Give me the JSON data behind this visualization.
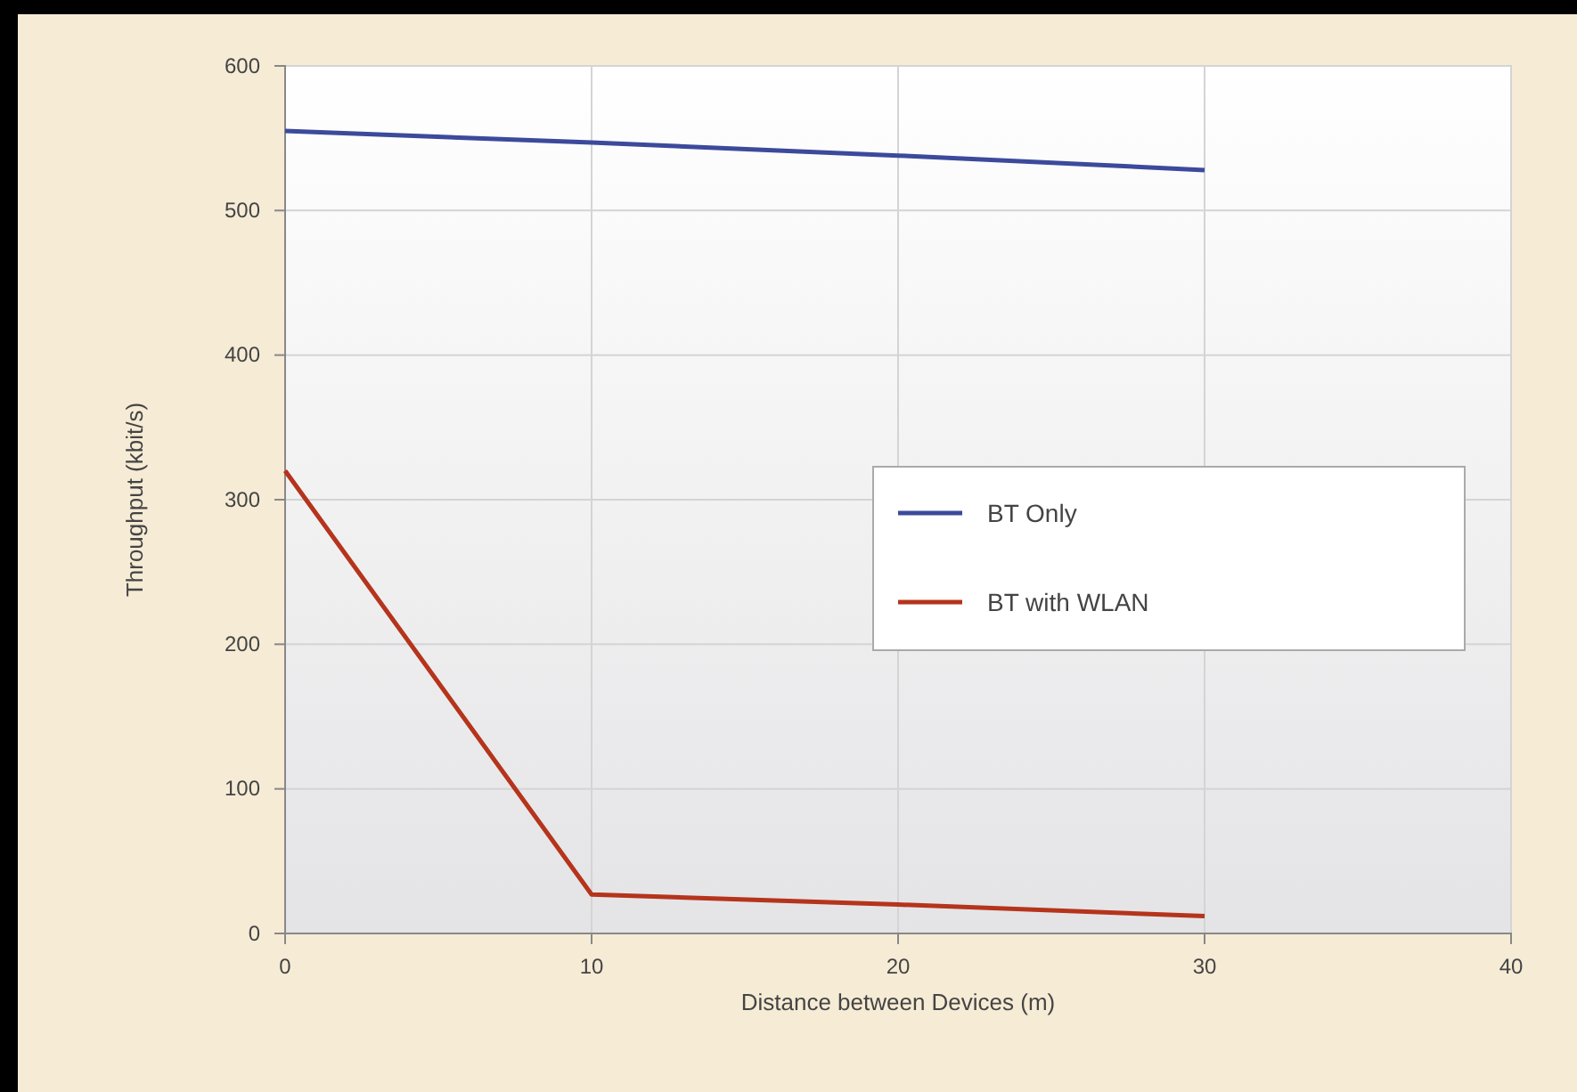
{
  "chart_data": {
    "type": "line",
    "xlabel": "Distance between Devices (m)",
    "ylabel": "Throughput (kbit/s)",
    "x": [
      0,
      10,
      20,
      30
    ],
    "series": [
      {
        "name": "BT Only",
        "color": "#3c4a9c",
        "values": [
          555,
          547,
          538,
          528
        ]
      },
      {
        "name": "BT with WLAN",
        "color": "#b5341c",
        "values": [
          320,
          27,
          20,
          12
        ]
      }
    ],
    "xlim": [
      0,
      40
    ],
    "xticks": [
      0,
      10,
      20,
      30,
      40
    ],
    "ylim": [
      0,
      600
    ],
    "yticks": [
      0,
      100,
      200,
      300,
      400,
      500,
      600
    ],
    "grid": true,
    "legend": "right",
    "marker": "none",
    "line_style": "solid"
  }
}
